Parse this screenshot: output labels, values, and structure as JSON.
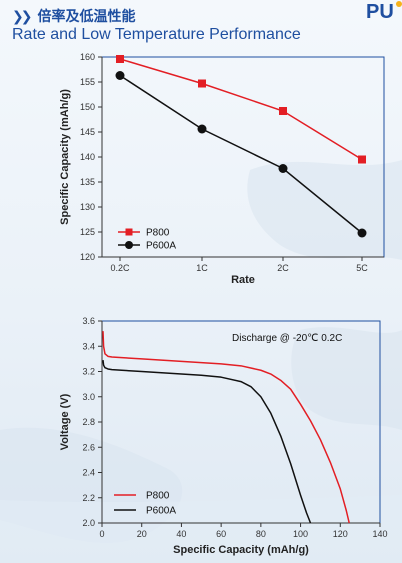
{
  "header": {
    "title_cn": "倍率及低温性能",
    "title_en": "Rate and Low Temperature Performance",
    "logo_text": "PU"
  },
  "colors": {
    "p800": "#e31e24",
    "p600a": "#111111",
    "frame": "#1f4fa0",
    "title": "#1f4fa0"
  },
  "chart_data": [
    {
      "type": "line",
      "categories": [
        "0.2C",
        "1C",
        "2C",
        "5C"
      ],
      "series": [
        {
          "name": "P800",
          "values": [
            159.6,
            154.7,
            149.2,
            139.5
          ],
          "color": "#e31e24",
          "marker": "square"
        },
        {
          "name": "P600A",
          "values": [
            156.3,
            145.6,
            137.7,
            124.8
          ],
          "color": "#111111",
          "marker": "circle"
        }
      ],
      "title": "",
      "xlabel": "Rate",
      "ylabel": "Specific Capacity (mAh/g)",
      "ylim": [
        120,
        160
      ],
      "yticks": [
        120,
        125,
        130,
        135,
        140,
        145,
        150,
        155,
        160
      ],
      "legend": "bottom-left",
      "grid": false
    },
    {
      "type": "line",
      "annotation": "Discharge @ -20℃ 0.2C",
      "xlabel": "Specific Capacity (mAh/g)",
      "ylabel": "Voltage (V)",
      "xlim": [
        0,
        140
      ],
      "ylim": [
        2.0,
        3.6
      ],
      "xticks": [
        0,
        20,
        40,
        60,
        80,
        100,
        120,
        140
      ],
      "yticks": [
        "2.0",
        "2.2",
        "2.4",
        "2.6",
        "2.8",
        "3.0",
        "3.2",
        "3.4",
        "3.6"
      ],
      "legend": "bottom-left",
      "grid": false,
      "series": [
        {
          "name": "P800",
          "color": "#e31e24",
          "x": [
            0.5,
            0.8,
            1.5,
            3,
            5,
            10,
            20,
            30,
            40,
            50,
            60,
            70,
            80,
            85,
            90,
            95,
            100,
            105,
            110,
            115,
            120,
            123,
            124.5
          ],
          "y": [
            3.52,
            3.4,
            3.34,
            3.32,
            3.315,
            3.31,
            3.3,
            3.29,
            3.28,
            3.27,
            3.26,
            3.245,
            3.21,
            3.18,
            3.13,
            3.06,
            2.94,
            2.81,
            2.66,
            2.48,
            2.27,
            2.1,
            2.0
          ]
        },
        {
          "name": "P600A",
          "color": "#111111",
          "x": [
            0.5,
            0.8,
            1.5,
            3,
            5,
            10,
            20,
            30,
            40,
            50,
            60,
            70,
            75,
            80,
            85,
            90,
            95,
            100,
            103,
            105
          ],
          "y": [
            3.29,
            3.25,
            3.23,
            3.22,
            3.215,
            3.21,
            3.2,
            3.19,
            3.18,
            3.17,
            3.155,
            3.12,
            3.08,
            3.0,
            2.87,
            2.69,
            2.47,
            2.22,
            2.08,
            2.0
          ]
        }
      ]
    }
  ]
}
